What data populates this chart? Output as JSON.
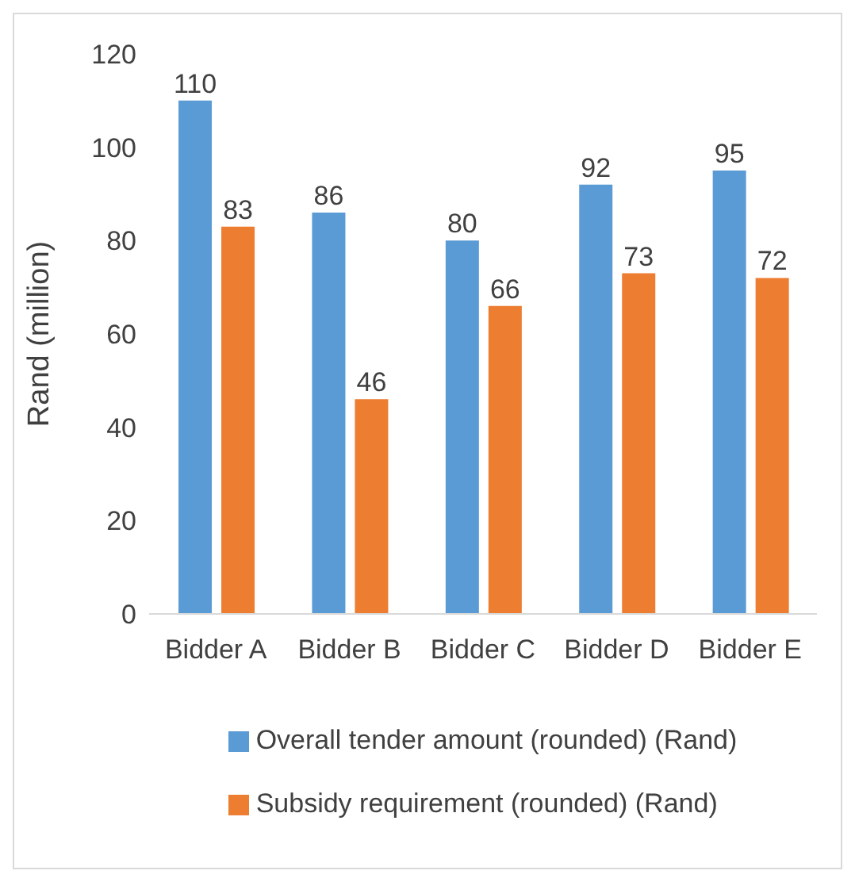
{
  "chart_data": {
    "type": "bar",
    "ylabel": "Rand (million)",
    "categories": [
      "Bidder A",
      "Bidder B",
      "Bidder C",
      "Bidder D",
      "Bidder E"
    ],
    "series": [
      {
        "name": "Overall tender amount (rounded) (Rand)",
        "color": "#5b9bd5",
        "values": [
          110,
          86,
          80,
          92,
          95
        ]
      },
      {
        "name": "Subsidy requirement (rounded) (Rand)",
        "color": "#ed7d31",
        "values": [
          83,
          46,
          66,
          73,
          72
        ]
      }
    ],
    "ylim": [
      0,
      120
    ],
    "yticks": [
      0,
      20,
      40,
      60,
      80,
      100,
      120
    ],
    "data_labels": true,
    "grid": false,
    "legend": "bottom"
  }
}
